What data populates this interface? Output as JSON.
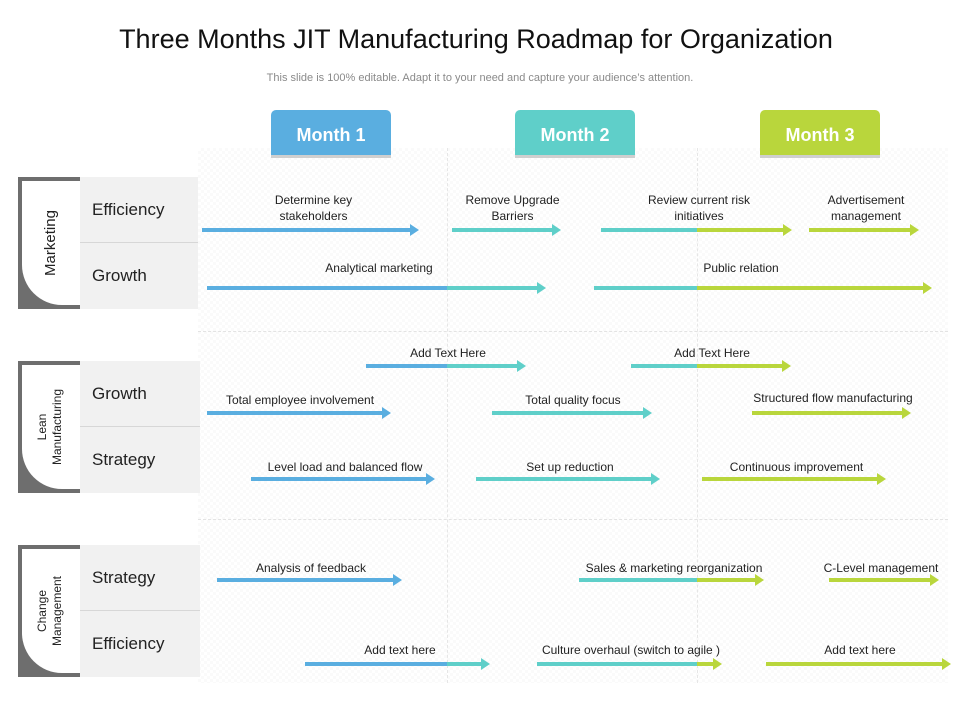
{
  "title": "Three Months JIT Manufacturing Roadmap for Organization",
  "subtitle": "This slide is 100% editable. Adapt it to your need and capture your audience’s attention.",
  "colors": {
    "month1": "#5aaee0",
    "month2": "#5fcfc9",
    "month3": "#b9d63c",
    "group_bg": "#6e6e6e",
    "row_bg": "#f1f1f1"
  },
  "months": [
    "Month 1",
    "Month 2",
    "Month 3"
  ],
  "groups": [
    {
      "label_lines": [
        "Marketing"
      ],
      "rows": [
        "Efficiency",
        "Growth"
      ]
    },
    {
      "label_lines": [
        "Lean",
        "Manufacturing"
      ],
      "rows": [
        "Growth",
        "Strategy"
      ]
    },
    {
      "label_lines": [
        "Change",
        "Management"
      ],
      "rows": [
        "Strategy",
        "Efficiency"
      ]
    }
  ],
  "tasks": [
    {
      "lines": [
        "Determine key",
        "stakeholders"
      ]
    },
    {
      "lines": [
        "Remove Upgrade",
        "Barriers"
      ]
    },
    {
      "lines": [
        "Review current risk",
        "initiatives"
      ]
    },
    {
      "lines": [
        "Advertisement",
        "management"
      ]
    },
    {
      "lines": [
        "Analytical marketing"
      ]
    },
    {
      "lines": [
        "Public relation"
      ]
    },
    {
      "lines": [
        "Add Text Here"
      ]
    },
    {
      "lines": [
        "Add Text Here"
      ]
    },
    {
      "lines": [
        "Total employee involvement"
      ]
    },
    {
      "lines": [
        "Total quality focus"
      ]
    },
    {
      "lines": [
        "Structured flow manufacturing"
      ]
    },
    {
      "lines": [
        "Level load and balanced flow"
      ]
    },
    {
      "lines": [
        "Set up reduction"
      ]
    },
    {
      "lines": [
        "Continuous improvement"
      ]
    },
    {
      "lines": [
        "Analysis of feedback"
      ]
    },
    {
      "lines": [
        "Sales & marketing reorganization"
      ]
    },
    {
      "lines": [
        "C-Level management"
      ]
    },
    {
      "lines": [
        "Add text here"
      ]
    },
    {
      "lines": [
        "Culture overhaul (switch to agile )"
      ]
    },
    {
      "lines": [
        "Add text here"
      ]
    }
  ]
}
